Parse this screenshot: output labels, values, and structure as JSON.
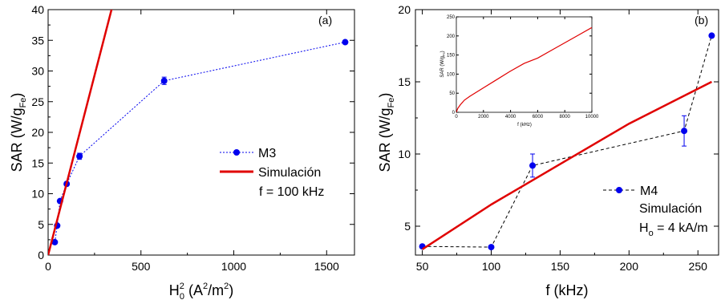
{
  "chart_data": [
    {
      "type": "scatter",
      "panel_label": "(a)",
      "xlabel": "H",
      "xlabel_sup": "2",
      "xlabel_sub": "0",
      "xlabel_units": " (A",
      "xlabel_units_sup": "2",
      "xlabel_units_tail": "/m",
      "xlabel_units_tail_sup": "2",
      "xlabel_close": ")",
      "ylabel": "SAR (W/g",
      "ylabel_sub": "Fe",
      "ylabel_close": ")",
      "xlim": [
        0,
        1650
      ],
      "ylim": [
        0,
        40
      ],
      "xticks": [
        0,
        500,
        1000,
        1500
      ],
      "xtick_labels": [
        "0",
        "500",
        "1000",
        "1500"
      ],
      "yticks": [
        0,
        5,
        10,
        15,
        20,
        25,
        30,
        35,
        40
      ],
      "ytick_labels": [
        "0",
        "5",
        "10",
        "15",
        "20",
        "25",
        "30",
        "35",
        "40"
      ],
      "legend": {
        "placement": "center-right",
        "entries": [
          "M3",
          "Simulación",
          "f = 100 kHz"
        ]
      },
      "series": [
        {
          "name": "M3",
          "style": "dotted-markers",
          "color": "#0000ee",
          "x": [
            36,
            49,
            64,
            100,
            169,
            625,
            1600
          ],
          "y": [
            2.1,
            4.8,
            8.8,
            11.6,
            16.1,
            28.4,
            34.7
          ],
          "err": [
            0,
            0,
            0,
            0,
            0.5,
            0.6,
            0
          ]
        },
        {
          "name": "Simulación",
          "style": "line",
          "color": "#e00000",
          "x": [
            0,
            350
          ],
          "y": [
            0,
            41
          ]
        }
      ]
    },
    {
      "type": "scatter",
      "panel_label": "(b)",
      "xlabel": "f (kHz)",
      "ylabel": "SAR (W/g",
      "ylabel_sub": "Fe",
      "ylabel_close": ")",
      "xlim": [
        45,
        265
      ],
      "ylim": [
        3,
        20
      ],
      "xticks": [
        50,
        100,
        150,
        200,
        250
      ],
      "xtick_labels": [
        "50",
        "100",
        "150",
        "200",
        "250"
      ],
      "yticks": [
        5,
        10,
        15,
        20
      ],
      "ytick_labels": [
        "5",
        "10",
        "15",
        "20"
      ],
      "legend": {
        "placement": "bottom-right",
        "entries": [
          "M4",
          "Simulación",
          "H",
          "o",
          " = 4 kA/m"
        ]
      },
      "series": [
        {
          "name": "M4",
          "style": "dashed-markers",
          "color": "#0000ee",
          "x": [
            50,
            100,
            130,
            240,
            260
          ],
          "y": [
            3.6,
            3.55,
            9.2,
            11.6,
            18.2
          ],
          "err": [
            0,
            0,
            0.8,
            1.05,
            0
          ]
        },
        {
          "name": "Simulación",
          "style": "line",
          "color": "#e00000",
          "x": [
            50,
            100,
            150,
            200,
            260
          ],
          "y": [
            3.4,
            6.5,
            9.3,
            12.1,
            15.0
          ]
        }
      ],
      "inset": {
        "type": "line",
        "xlabel": "f (kHz)",
        "ylabel": "SAR (W/g",
        "ylabel_sub": "Fe",
        "ylabel_close": ")",
        "xlim": [
          0,
          10000
        ],
        "ylim": [
          0,
          250
        ],
        "xticks": [
          0,
          2000,
          4000,
          6000,
          8000,
          10000
        ],
        "xtick_labels": [
          "0",
          "2000",
          "4000",
          "6000",
          "8000",
          "10000"
        ],
        "yticks": [
          0,
          50,
          100,
          150,
          200,
          250
        ],
        "ytick_labels": [
          "0",
          "50",
          "100",
          "150",
          "200",
          "250"
        ],
        "series": [
          {
            "color": "#e00000",
            "x": [
              0,
              100,
              300,
              600,
              1000,
              2000,
              3000,
              4000,
              5000,
              6000,
              7000,
              8000,
              9000,
              10000
            ],
            "y": [
              0,
              10,
              20,
              32,
              42,
              64,
              86,
              108,
              128,
              142,
              162,
              182,
              202,
              222
            ]
          }
        ]
      }
    }
  ]
}
